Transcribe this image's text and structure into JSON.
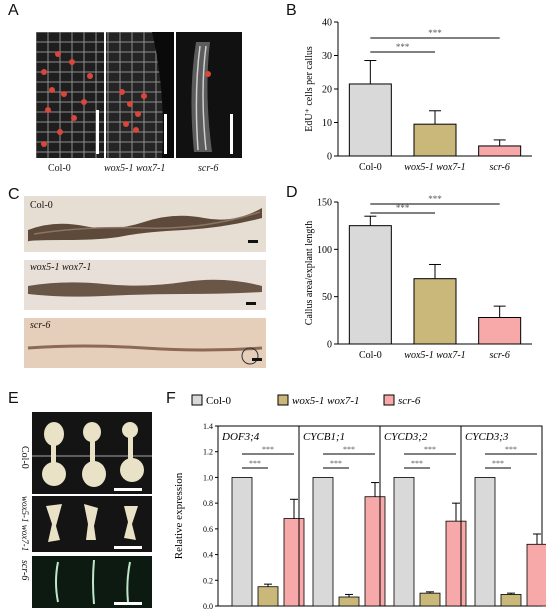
{
  "panels": {
    "A": {
      "label": "A",
      "captions": [
        "Col-0",
        "wox5-1 wox7-1",
        "scr-6"
      ]
    },
    "B": {
      "label": "B",
      "chart_data": {
        "type": "bar",
        "ylabel": "EdU⁺ cells per callus",
        "categories": [
          "Col-0",
          "wox5-1 wox7-1",
          "scr-6"
        ],
        "values": [
          21.5,
          9.5,
          3.0
        ],
        "errors": [
          7.0,
          4.0,
          1.8
        ],
        "ylim": [
          0,
          40
        ],
        "yticks": [
          0,
          10,
          20,
          30,
          40
        ],
        "colors": [
          "#d9d9d9",
          "#c9b87a",
          "#f7a8a8"
        ],
        "significance": [
          {
            "from": 0,
            "to": 2,
            "label": "***"
          },
          {
            "from": 0,
            "to": 1,
            "label": "***"
          }
        ]
      }
    },
    "C": {
      "label": "C",
      "captions": [
        "Col-0",
        "wox5-1 wox7-1",
        "scr-6"
      ]
    },
    "D": {
      "label": "D",
      "chart_data": {
        "type": "bar",
        "ylabel": "Callus area/explant length",
        "categories": [
          "Col-0",
          "wox5-1 wox7-1",
          "scr-6"
        ],
        "values": [
          125,
          69,
          28
        ],
        "errors": [
          10,
          15,
          12
        ],
        "ylim": [
          0,
          150
        ],
        "yticks": [
          0,
          50,
          100,
          150
        ],
        "colors": [
          "#d9d9d9",
          "#c9b87a",
          "#f7a8a8"
        ],
        "significance": [
          {
            "from": 0,
            "to": 2,
            "label": "***"
          },
          {
            "from": 0,
            "to": 1,
            "label": "***"
          }
        ]
      }
    },
    "E": {
      "label": "E",
      "captions": [
        "Col-0",
        "wox5-1 wox7-1",
        "scr-6"
      ]
    },
    "F": {
      "label": "F",
      "chart_data": {
        "type": "bar",
        "ylabel": "Relative expression",
        "legend": [
          "Col-0",
          "wox5-1 wox7-1",
          "scr-6"
        ],
        "colors": [
          "#d9d9d9",
          "#c9b87a",
          "#f7a8a8"
        ],
        "ylim": [
          0,
          1.4
        ],
        "yticks": [
          "0.0",
          "0.2",
          "0.4",
          "0.6",
          "0.8",
          "1.0",
          "1.2",
          "1.4"
        ],
        "groups": [
          {
            "gene": "DOF3;4",
            "values": [
              1.0,
              0.15,
              0.68
            ],
            "errors": [
              0,
              0.02,
              0.15
            ]
          },
          {
            "gene": "CYCB1;1",
            "values": [
              1.0,
              0.07,
              0.85
            ],
            "errors": [
              0,
              0.02,
              0.11
            ]
          },
          {
            "gene": "CYCD3;2",
            "values": [
              1.0,
              0.1,
              0.66
            ],
            "errors": [
              0,
              0.01,
              0.14
            ]
          },
          {
            "gene": "CYCD3;3",
            "values": [
              1.0,
              0.09,
              0.48
            ],
            "errors": [
              0,
              0.01,
              0.08
            ]
          }
        ],
        "significance": [
          {
            "from": 0,
            "to": 2,
            "label": "***"
          },
          {
            "from": 0,
            "to": 1,
            "label": "***"
          }
        ]
      }
    }
  }
}
